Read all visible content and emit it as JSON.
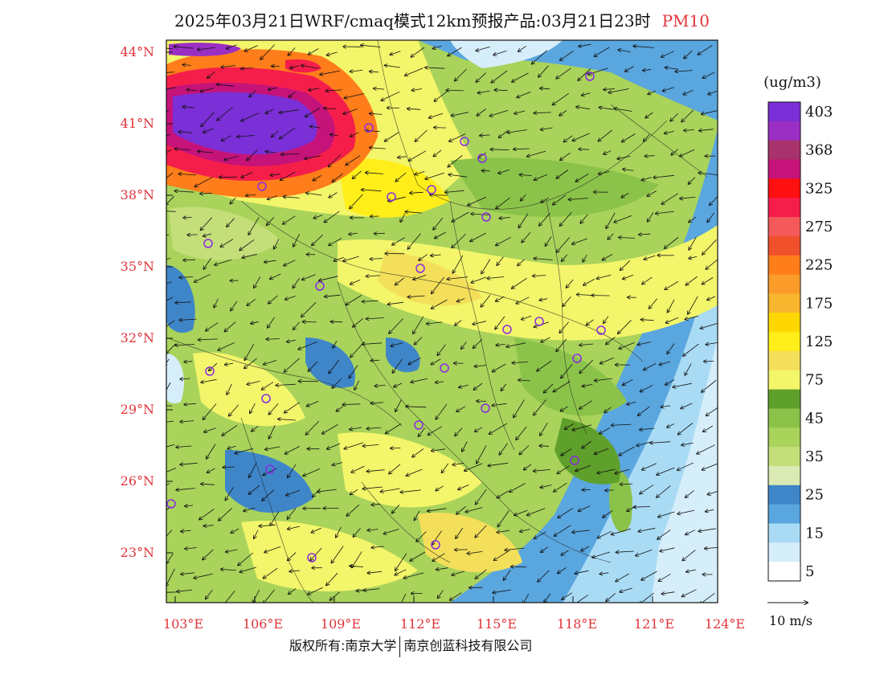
{
  "title": {
    "main": "2025年03月21日WRF/cmaq模式12km预报产品:03月21日23时",
    "variable": "PM10"
  },
  "map": {
    "lat_labels": [
      "44°N",
      "41°N",
      "38°N",
      "35°N",
      "32°N",
      "29°N",
      "26°N",
      "23°N"
    ],
    "lon_labels": [
      "103°E",
      "106°E",
      "109°E",
      "112°E",
      "115°E",
      "118°E",
      "121°E",
      "124°E"
    ],
    "label_color": "#e0343a"
  },
  "legend": {
    "unit": "(ug/m3)",
    "bins": [
      {
        "label": "403",
        "color": "#7b2fd6"
      },
      {
        "label": "",
        "color": "#9b2fc4"
      },
      {
        "label": "368",
        "color": "#a8326b"
      },
      {
        "label": "",
        "color": "#c5137a"
      },
      {
        "label": "325",
        "color": "#ff1010"
      },
      {
        "label": "",
        "color": "#f51e4b"
      },
      {
        "label": "275",
        "color": "#f55a5a"
      },
      {
        "label": "",
        "color": "#f0502c"
      },
      {
        "label": "225",
        "color": "#ff7d1a"
      },
      {
        "label": "",
        "color": "#fb9b2a"
      },
      {
        "label": "175",
        "color": "#f8b52e"
      },
      {
        "label": "",
        "color": "#ffd700"
      },
      {
        "label": "125",
        "color": "#ffee1a"
      },
      {
        "label": "",
        "color": "#f3df5a"
      },
      {
        "label": "75",
        "color": "#f3f56a"
      },
      {
        "label": "",
        "color": "#5f9f2b"
      },
      {
        "label": "45",
        "color": "#8bc34a"
      },
      {
        "label": "",
        "color": "#a9d35b"
      },
      {
        "label": "35",
        "color": "#c4de7a"
      },
      {
        "label": "",
        "color": "#dbeab4"
      },
      {
        "label": "25",
        "color": "#3f86c9"
      },
      {
        "label": "",
        "color": "#5aa6df"
      },
      {
        "label": "15",
        "color": "#a9dbf5"
      },
      {
        "label": "",
        "color": "#d6eefa"
      },
      {
        "label": "5",
        "color": "#ffffff"
      }
    ],
    "wind_scale": "10 m/s"
  },
  "footer": {
    "left": "版权所有:南京大学",
    "right": "南京创蓝科技有限公司"
  }
}
